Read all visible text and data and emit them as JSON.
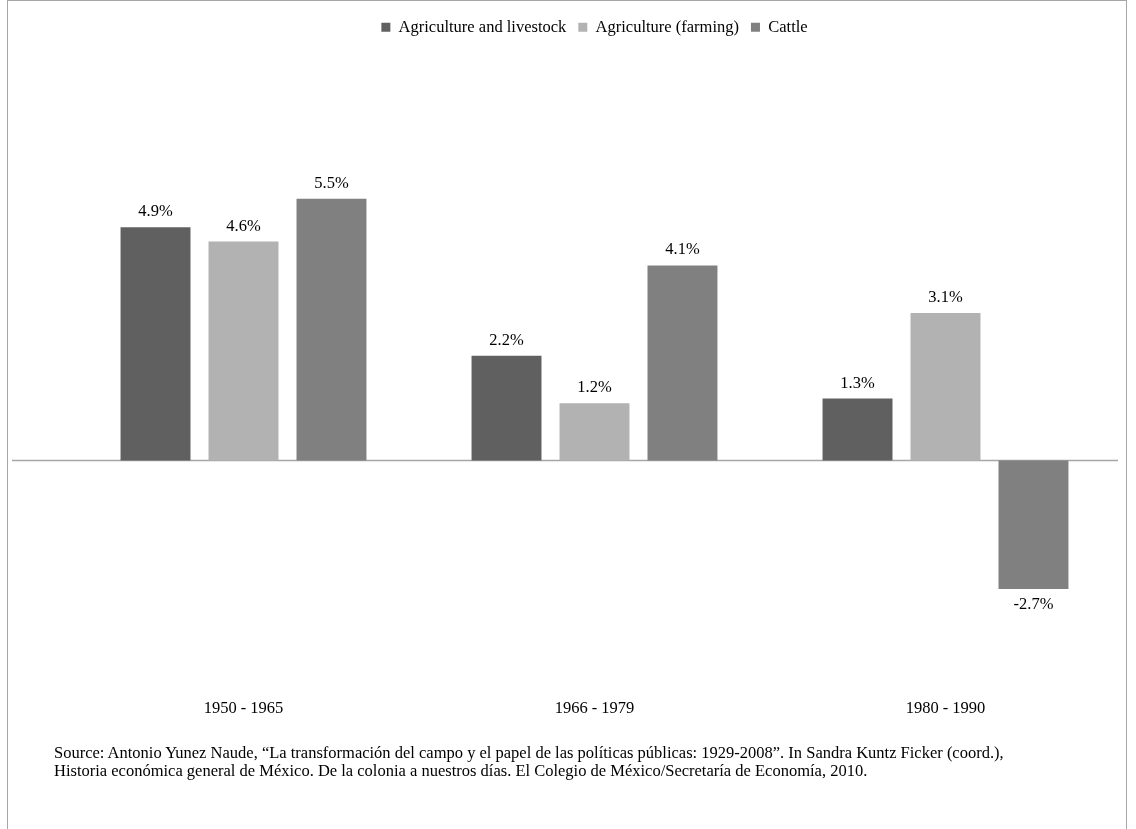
{
  "chart_data": {
    "type": "bar",
    "categories": [
      "1950 - 1965",
      "1966 - 1979",
      "1980 - 1990"
    ],
    "series": [
      {
        "name": "Agriculture and livestock",
        "color": "#606060",
        "values": [
          4.9,
          2.2,
          1.3
        ],
        "value_labels": [
          "4.9%",
          "2.2%",
          "1.3%"
        ]
      },
      {
        "name": "Agriculture (farming)",
        "color": "#b2b2b2",
        "values": [
          4.6,
          1.2,
          3.1
        ],
        "value_labels": [
          "4.6%",
          "1.2%",
          "3.1%"
        ]
      },
      {
        "name": "Cattle",
        "color": "#808080",
        "values": [
          5.5,
          4.1,
          -2.7
        ],
        "value_labels": [
          "5.5%",
          "4.1%",
          "-2.7%"
        ]
      }
    ],
    "legend": "top",
    "tick_labels": "x",
    "annotations": [
      "Source: Antonio Yunez Naude, “La transformación del campo y el papel de las políticas públicas: 1929-2008”. In Sandra Kuntz Ficker (coord.), Historia económica general de México. De la colonia a nuestros días. El Colegio de México/Secretaría de Economía, 2010."
    ]
  }
}
